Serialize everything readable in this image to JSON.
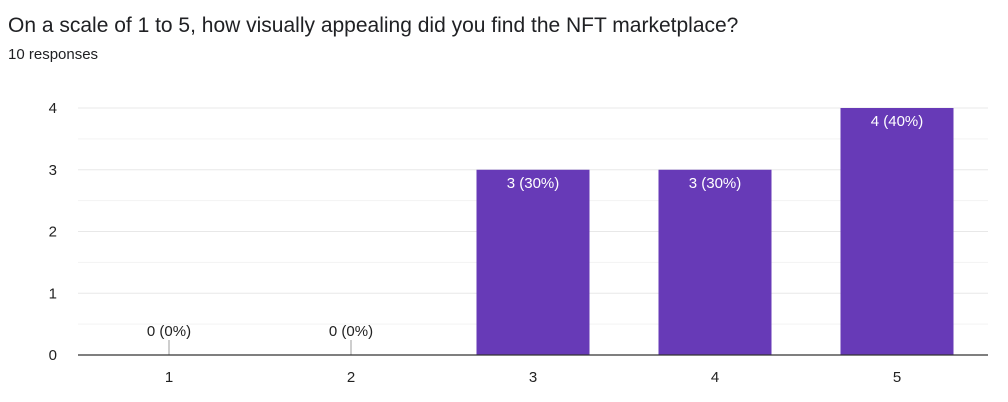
{
  "question": {
    "title": "On a scale of 1 to 5, how visually appealing did you find the NFT marketplace?",
    "responses_label": "10 responses"
  },
  "colors": {
    "bar": "#673ab7",
    "gridline": "#e8e8e8",
    "minor_gridline": "#f3f3f3",
    "axis": "#333333",
    "inside_label": "#ffffff",
    "outside_label": "#222222"
  },
  "chart_data": {
    "type": "bar",
    "title": "",
    "xlabel": "",
    "ylabel": "",
    "categories": [
      "1",
      "2",
      "3",
      "4",
      "5"
    ],
    "values": [
      0,
      0,
      3,
      3,
      4
    ],
    "data_labels": [
      "0 (0%)",
      "0 (0%)",
      "3 (30%)",
      "3 (30%)",
      "4 (40%)"
    ],
    "ylim": [
      0,
      4
    ],
    "yticks": [
      0,
      1,
      2,
      3,
      4
    ],
    "grid": true,
    "legend": "none"
  }
}
